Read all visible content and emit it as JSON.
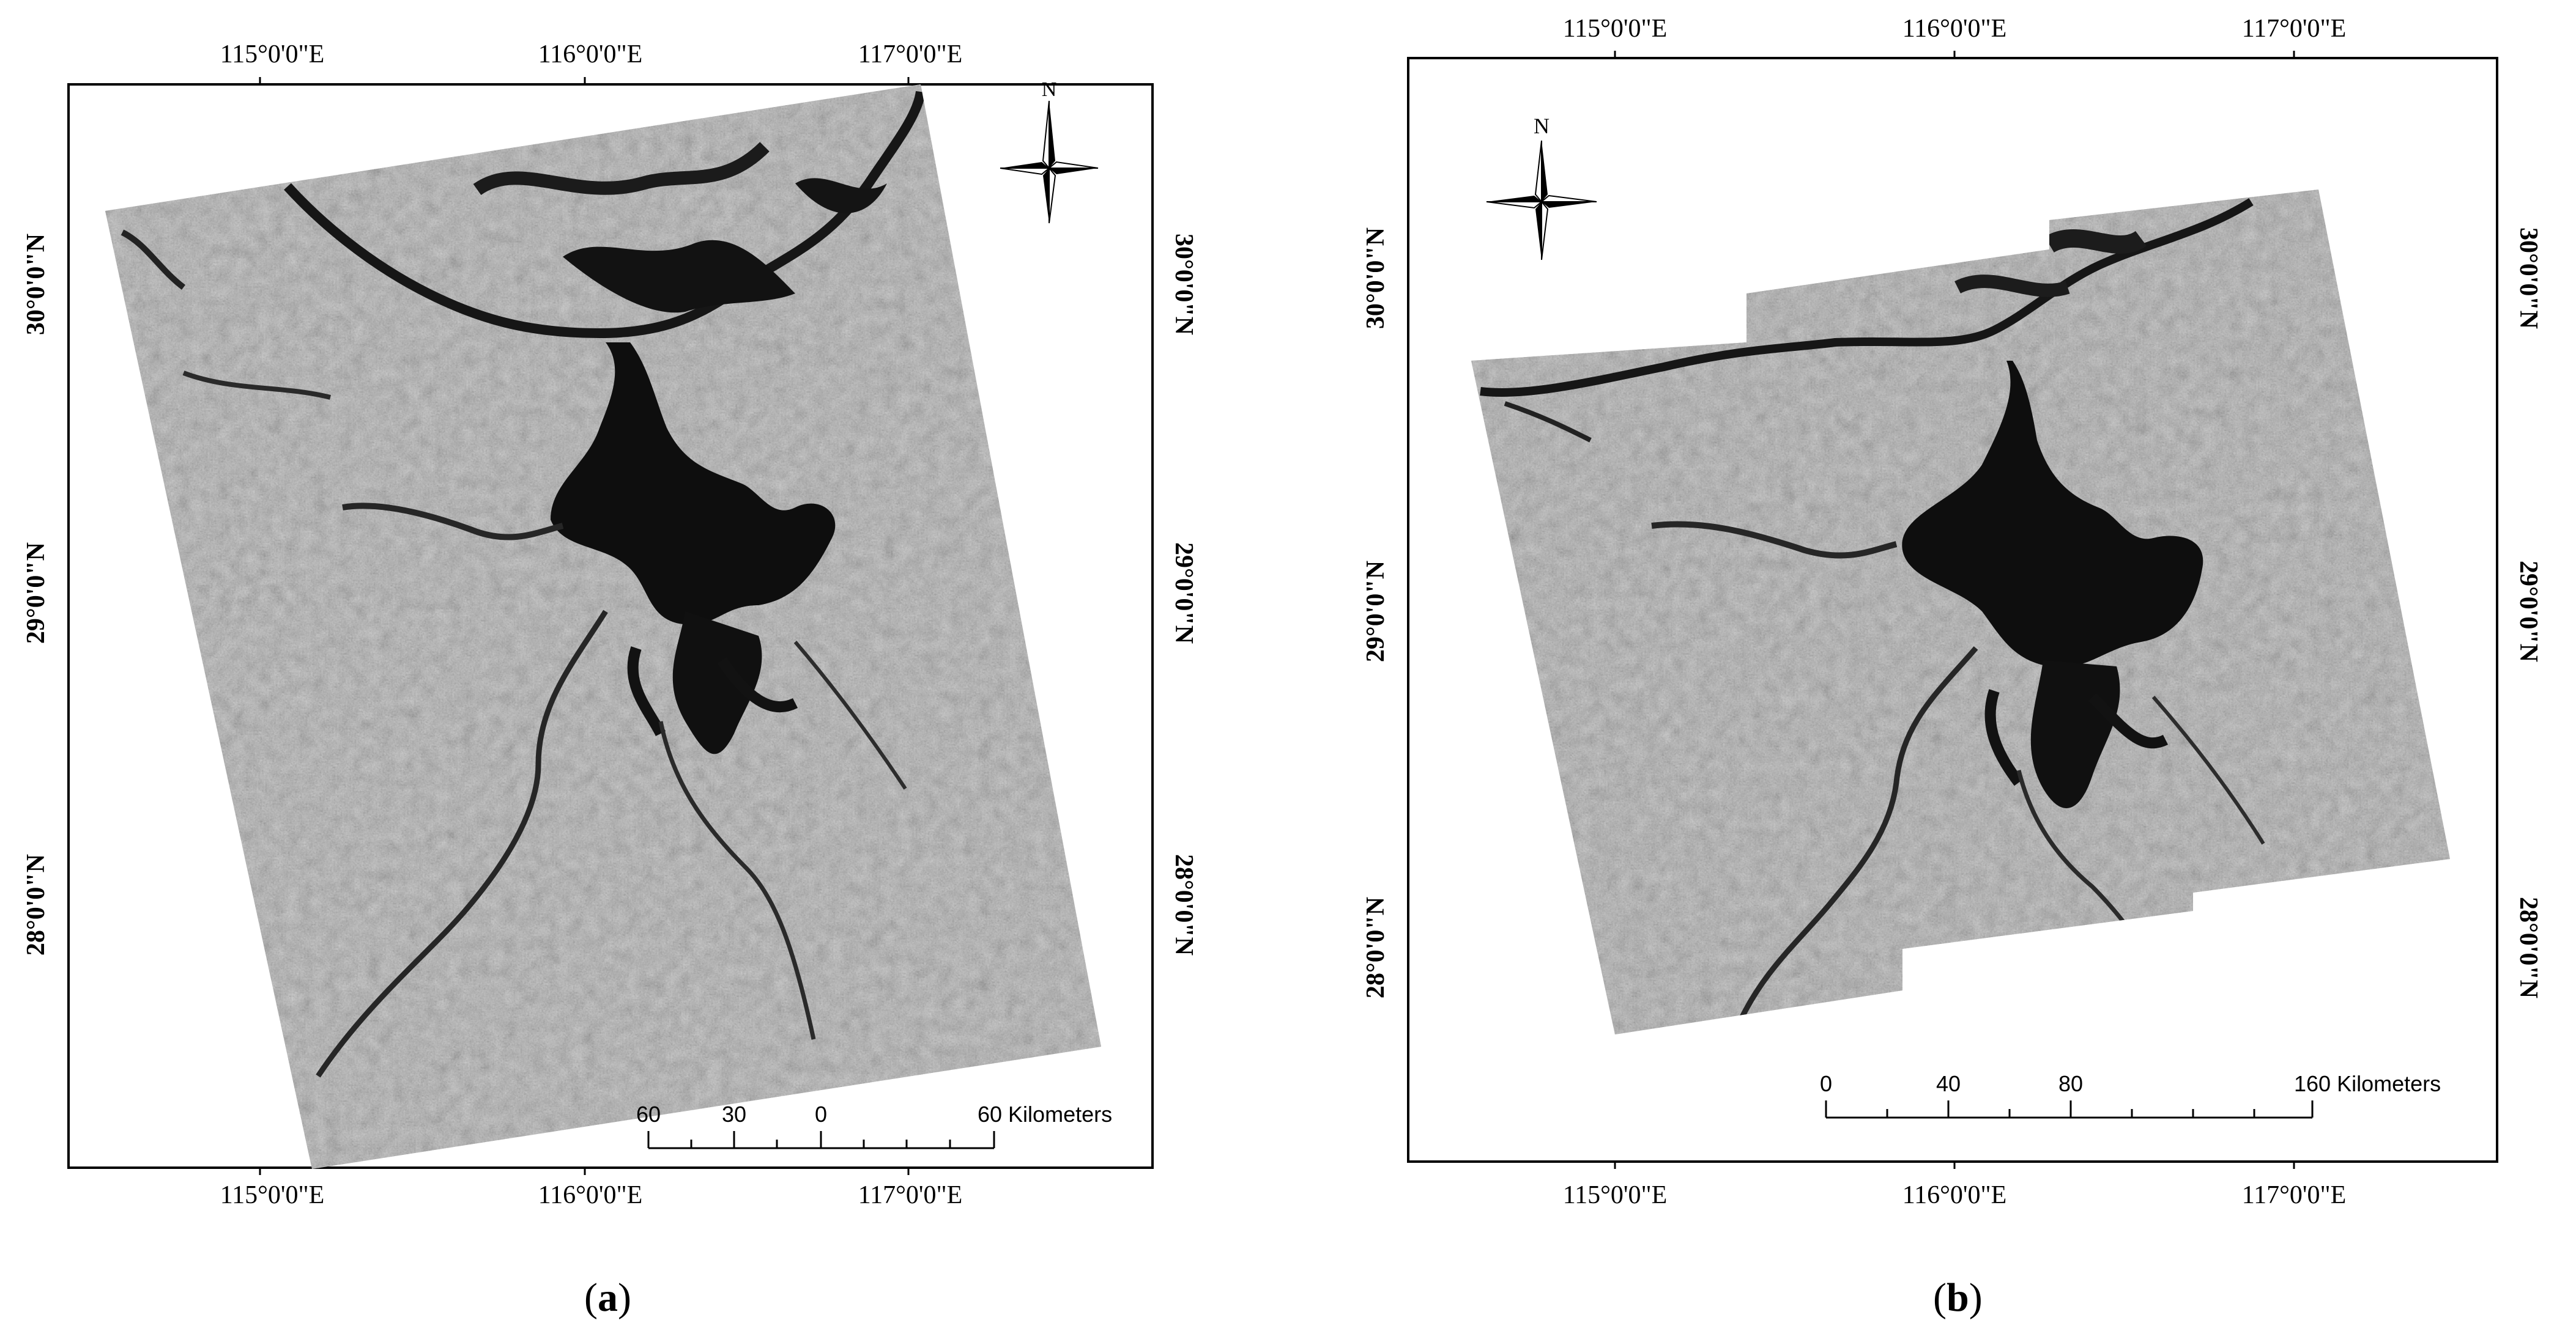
{
  "panels": [
    {
      "id": "a",
      "label": "a",
      "top_lon_ticks": [
        "115°0'0\"E",
        "116°0'0\"E",
        "117°0'0\"E"
      ],
      "bottom_lon_ticks": [
        "115°0'0\"E",
        "116°0'0\"E",
        "117°0'0\"E"
      ],
      "lat_ticks": [
        "30°0'0\"N",
        "29°0'0\"N",
        "28°0'0\"N"
      ],
      "north_label": "N",
      "scale_bar": {
        "ticks": [
          "60",
          "30",
          "0",
          "60 Kilometers"
        ]
      }
    },
    {
      "id": "b",
      "label": "b",
      "top_lon_ticks": [
        "115°0'0\"E",
        "116°0'0\"E",
        "117°0'0\"E"
      ],
      "bottom_lon_ticks": [
        "115°0'0\"E",
        "116°0'0\"E",
        "117°0'0\"E"
      ],
      "lat_ticks": [
        "30°0'0\"N",
        "29°0'0\"N",
        "28°0'0\"N"
      ],
      "north_label": "N",
      "scale_bar": {
        "ticks": [
          "0",
          "40",
          "80",
          "160 Kilometers"
        ]
      }
    }
  ],
  "colors": {
    "frame": "#000000",
    "land": "#9a9a9a",
    "land_light": "#b8b8b8",
    "water": "#111111"
  }
}
